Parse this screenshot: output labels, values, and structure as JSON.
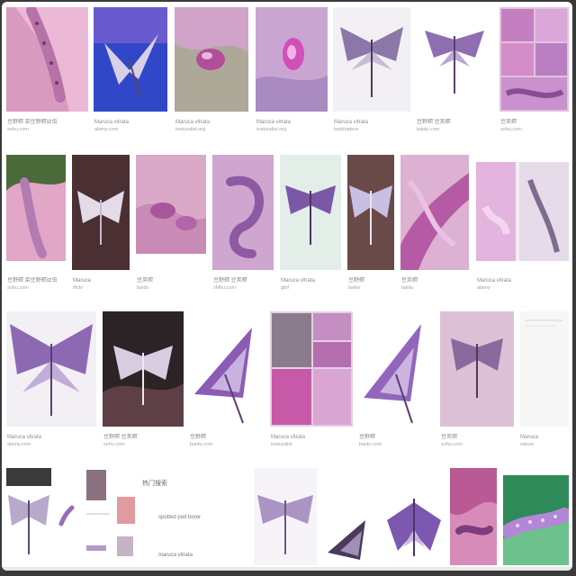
{
  "row1": [
    {
      "caption": "豆野螟 菜豆野螟幼虫",
      "source": "sohu.com"
    },
    {
      "caption": "Maruca vitrata",
      "source": "alamy.com"
    },
    {
      "caption": "Maruca vitrata",
      "source": "inaturalist.org"
    },
    {
      "caption": "Maruca vitrata",
      "source": "inaturalist.org"
    },
    {
      "caption": "Maruca vitrata",
      "source": "lepidoptera"
    },
    {
      "caption": "豆野螟 豆荚螟",
      "source": "baidu.com"
    },
    {
      "caption": "豆荚螟",
      "source": "sohu.com"
    }
  ],
  "row2": [
    {
      "caption": "豆野螟 菜豆野螟幼虫",
      "source": "sohu.com"
    },
    {
      "caption": "Maruca",
      "source": "flickr"
    },
    {
      "caption": "豆荚螟",
      "source": "baidu"
    },
    {
      "caption": "豆野螟 豆荚螟",
      "source": "zhihu.com"
    },
    {
      "caption": "Maruca vitrata",
      "source": "gbif"
    },
    {
      "caption": "豆野螟",
      "source": "baike"
    },
    {
      "caption": "豆荚螟",
      "source": "baidu"
    },
    {
      "caption": "Maruca vitrata",
      "source": "alamy"
    }
  ],
  "row3": [
    {
      "caption": "Maruca vitrata",
      "source": "alamy.com"
    },
    {
      "caption": "豆野螟 豆荚螟",
      "source": "sohu.com"
    },
    {
      "caption": "豆野螟",
      "source": "baidu.com"
    },
    {
      "caption": "Maruca vitrata",
      "source": "inaturalist"
    },
    {
      "caption": "豆野螟",
      "source": "baidu.com"
    },
    {
      "caption": "豆荚螟",
      "source": "sohu.com"
    },
    {
      "caption": "Maruca",
      "source": "nature"
    }
  ],
  "related": {
    "title": "热门搜索",
    "items": [
      "spotted pod borer",
      "maruca vitrata"
    ]
  },
  "colors": {
    "lavender": "#b7a1d6",
    "violet": "#7e5aa9",
    "pink": "#d791c6",
    "cream": "#f4f1f5",
    "dark": "#3b2c3f",
    "green": "#3a8f62"
  }
}
